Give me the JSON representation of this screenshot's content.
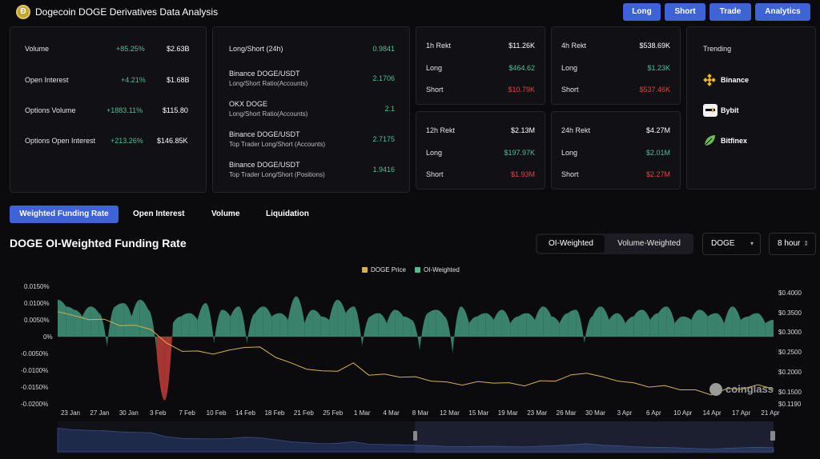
{
  "header": {
    "logo_glyph": "Ð",
    "title": "Dogecoin DOGE Derivatives Data Analysis",
    "buttons": [
      "Long",
      "Short",
      "Trade",
      "Analytics"
    ]
  },
  "stats": [
    {
      "label": "Volume",
      "change": "+85.25%",
      "value": "$2.63B"
    },
    {
      "label": "Open Interest",
      "change": "+4.21%",
      "value": "$1.68B"
    },
    {
      "label": "Options Volume",
      "change": "+1883.11%",
      "value": "$115.80"
    },
    {
      "label": "Options Open Interest",
      "change": "+213.26%",
      "value": "$146.85K"
    }
  ],
  "long_short": [
    {
      "label": "Long/Short (24h)",
      "sub": "",
      "value": "0.9841"
    },
    {
      "label": "Binance DOGE/USDT",
      "sub": "Long/Short Ratio(Accounts)",
      "value": "2.1706"
    },
    {
      "label": "OKX DOGE",
      "sub": "Long/Short Ratio(Accounts)",
      "value": "2.1"
    },
    {
      "label": "Binance DOGE/USDT",
      "sub": "Top Trader Long/Short (Accounts)",
      "value": "2.7175"
    },
    {
      "label": "Binance DOGE/USDT",
      "sub": "Top Trader Long/Short (Positions)",
      "value": "1.9416"
    }
  ],
  "rekt": [
    {
      "title": "1h Rekt",
      "total": "$11.26K",
      "long_label": "Long",
      "long": "$464.62",
      "short_label": "Short",
      "short": "$10.79K"
    },
    {
      "title": "4h Rekt",
      "total": "$538.69K",
      "long_label": "Long",
      "long": "$1.23K",
      "short_label": "Short",
      "short": "$537.46K"
    },
    {
      "title": "12h Rekt",
      "total": "$2.13M",
      "long_label": "Long",
      "long": "$197.97K",
      "short_label": "Short",
      "short": "$1.93M"
    },
    {
      "title": "24h Rekt",
      "total": "$4.27M",
      "long_label": "Long",
      "long": "$2.01M",
      "short_label": "Short",
      "short": "$2.27M"
    }
  ],
  "trending": {
    "title": "Trending",
    "items": [
      {
        "name": "Binance",
        "icon": "binance-icon"
      },
      {
        "name": "Bybit",
        "icon": "bybit-icon"
      },
      {
        "name": "Bitfinex",
        "icon": "bitfinex-icon"
      }
    ]
  },
  "tabs": [
    "Weighted Funding Rate",
    "Open Interest",
    "Volume",
    "Liquidation"
  ],
  "chart_section": {
    "title": "DOGE OI-Weighted Funding Rate",
    "segments": [
      "OI-Weighted",
      "Volume-Weighted"
    ],
    "symbol_select": "DOGE",
    "interval_select": "8 hour",
    "watermark": "coinglass"
  },
  "colors": {
    "accent": "#3d63d6",
    "positive": "#4fc08d",
    "negative": "#e0463f",
    "price": "#d8b14a",
    "area_pos": "#3f8f76",
    "area_neg": "#b73a37"
  },
  "chart_data": {
    "type": "area",
    "title": "DOGE OI-Weighted Funding Rate",
    "legend": [
      "DOGE Price",
      "OI-Weighted"
    ],
    "legend_position": "top-center",
    "x_ticks": [
      "23 Jan",
      "27 Jan",
      "30 Jan",
      "3 Feb",
      "7 Feb",
      "10 Feb",
      "14 Feb",
      "18 Feb",
      "21 Feb",
      "25 Feb",
      "1 Mar",
      "4 Mar",
      "8 Mar",
      "12 Mar",
      "15 Mar",
      "19 Mar",
      "23 Mar",
      "26 Mar",
      "30 Mar",
      "3 Apr",
      "6 Apr",
      "10 Apr",
      "14 Apr",
      "17 Apr",
      "21 Apr"
    ],
    "y_left_ticks": [
      "0.0150%",
      "0.0100%",
      "0.0050%",
      "0%",
      "-0.0050%",
      "-0.0100%",
      "-0.0150%",
      "-0.0200%"
    ],
    "y_left_range": [
      -0.02,
      0.015
    ],
    "y_right_ticks": [
      "$0.4000",
      "$0.3500",
      "$0.3000",
      "$0.2500",
      "$0.2000",
      "$0.1500",
      "$0.1190"
    ],
    "y_right_range": [
      0.119,
      0.4
    ],
    "series": [
      {
        "name": "OI-Weighted",
        "unit": "%",
        "values": [
          0.011,
          0.009,
          0.008,
          0.006,
          0.009,
          0.007,
          -0.003,
          0.009,
          0.01,
          0.006,
          0.011,
          0.008,
          -0.004,
          -0.019,
          0.004,
          0.006,
          0.007,
          0.005,
          0.01,
          -0.002,
          0.008,
          0.006,
          0.009,
          -0.002,
          0.007,
          0.009,
          0.006,
          0.007,
          0.005,
          0.012,
          0.004,
          0.008,
          0.006,
          0.005,
          0.011,
          0.007,
          0.009,
          -0.003,
          0.006,
          0.007,
          0.004,
          0.008,
          0.006,
          0.005,
          -0.004,
          0.007,
          0.008,
          0.006,
          -0.005,
          0.009,
          0.004,
          0.006,
          0.007,
          0.005,
          0.008,
          0.004,
          0.006,
          0.007,
          0.005,
          0.009,
          0.006,
          0.004,
          0.007,
          0.008,
          -0.002,
          0.006,
          0.009,
          0.005,
          0.007,
          0.004,
          0.006,
          0.008,
          0.005,
          0.007,
          0.009,
          0.004,
          0.006,
          0.005,
          0.008,
          0.006,
          0.007,
          0.004,
          0.009,
          0.005,
          0.006,
          0.007,
          0.004,
          0.005
        ]
      },
      {
        "name": "DOGE Price",
        "unit": "$",
        "values": [
          0.355,
          0.34,
          0.335,
          0.33,
          0.32,
          0.315,
          0.31,
          0.27,
          0.255,
          0.25,
          0.248,
          0.252,
          0.265,
          0.26,
          0.24,
          0.22,
          0.21,
          0.2,
          0.205,
          0.22,
          0.195,
          0.192,
          0.19,
          0.185,
          0.18,
          0.172,
          0.17,
          0.173,
          0.175,
          0.17,
          0.168,
          0.175,
          0.18,
          0.19,
          0.2,
          0.185,
          0.18,
          0.17,
          0.165,
          0.163,
          0.158,
          0.152,
          0.145,
          0.155,
          0.16,
          0.165,
          0.16
        ]
      }
    ]
  }
}
